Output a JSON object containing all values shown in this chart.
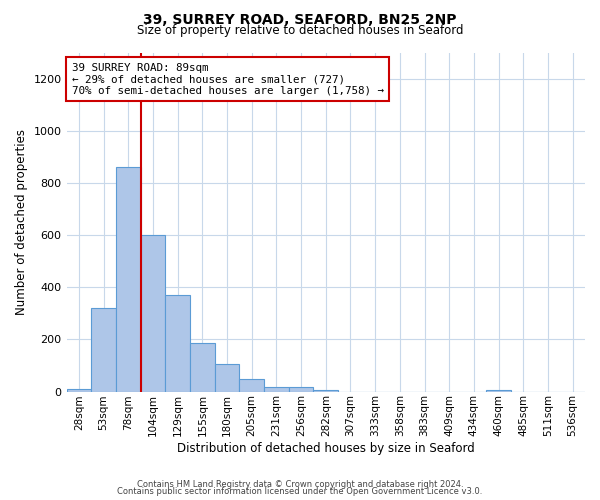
{
  "title": "39, SURREY ROAD, SEAFORD, BN25 2NP",
  "subtitle": "Size of property relative to detached houses in Seaford",
  "xlabel": "Distribution of detached houses by size in Seaford",
  "ylabel": "Number of detached properties",
  "bar_labels": [
    "28sqm",
    "53sqm",
    "78sqm",
    "104sqm",
    "129sqm",
    "155sqm",
    "180sqm",
    "205sqm",
    "231sqm",
    "256sqm",
    "282sqm",
    "307sqm",
    "333sqm",
    "358sqm",
    "383sqm",
    "409sqm",
    "434sqm",
    "460sqm",
    "485sqm",
    "511sqm",
    "536sqm"
  ],
  "bar_values": [
    10,
    320,
    860,
    600,
    370,
    185,
    105,
    47,
    18,
    18,
    5,
    0,
    0,
    0,
    0,
    0,
    0,
    5,
    0,
    0,
    0
  ],
  "bar_color": "#aec6e8",
  "bar_edge_color": "#5b9bd5",
  "vline_color": "#cc0000",
  "vline_x_index": 2,
  "annotation_text": "39 SURREY ROAD: 89sqm\n← 29% of detached houses are smaller (727)\n70% of semi-detached houses are larger (1,758) →",
  "annotation_box_facecolor": "#ffffff",
  "annotation_box_edgecolor": "#cc0000",
  "ylim": [
    0,
    1300
  ],
  "yticks": [
    0,
    200,
    400,
    600,
    800,
    1000,
    1200
  ],
  "footer1": "Contains HM Land Registry data © Crown copyright and database right 2024.",
  "footer2": "Contains public sector information licensed under the Open Government Licence v3.0.",
  "bg_color": "#ffffff",
  "grid_color": "#c8d8ea"
}
